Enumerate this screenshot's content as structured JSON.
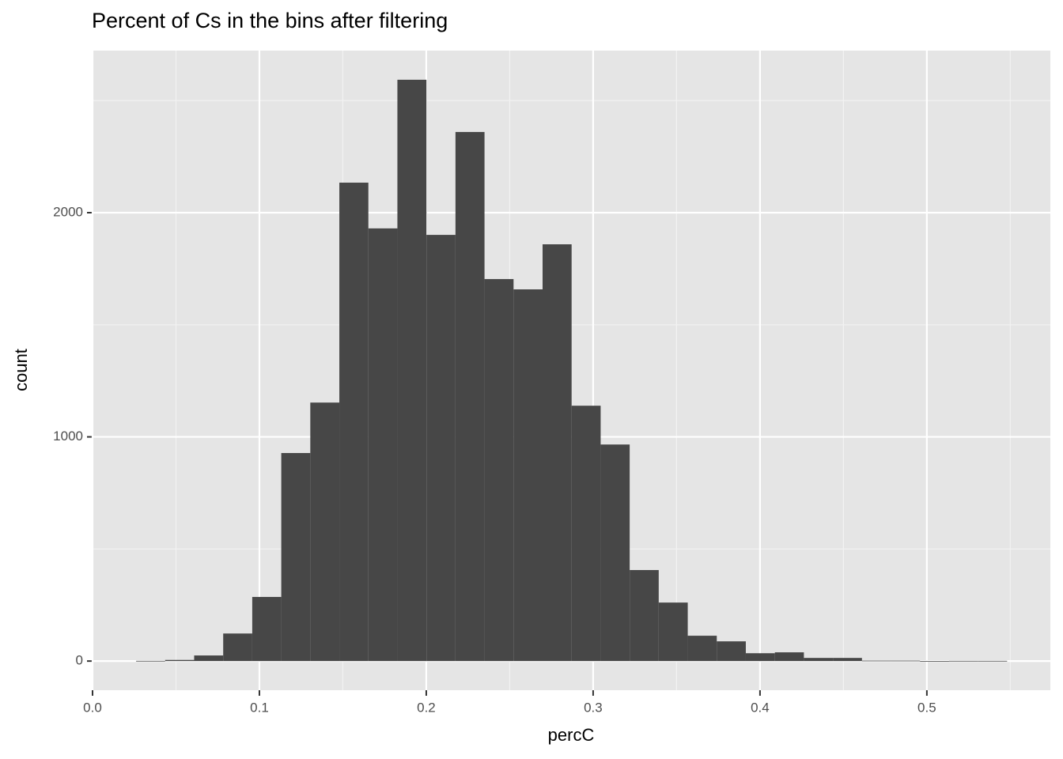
{
  "chart_data": {
    "type": "histogram",
    "title": "Percent of Cs in the bins after filtering",
    "x_label": "percC",
    "y_label": "count",
    "bins": [
      0.0261,
      0.0435,
      0.0609,
      0.0783,
      0.0957,
      0.1131,
      0.1305,
      0.1479,
      0.1653,
      0.1827,
      0.2001,
      0.2175,
      0.2349,
      0.2523,
      0.2697,
      0.2871,
      0.3045,
      0.3219,
      0.3393,
      0.3567,
      0.3741,
      0.3915,
      0.4089,
      0.4263,
      0.4437,
      0.4611,
      0.4785,
      0.4959,
      0.5133,
      0.5307,
      0.5481
    ],
    "values": [
      1,
      5,
      25,
      123,
      286,
      928,
      1153,
      2134,
      1930,
      2593,
      1901,
      2360,
      1704,
      1658,
      1859,
      1139,
      966,
      406,
      261,
      113,
      88,
      35,
      39,
      14,
      14,
      2,
      2,
      0,
      1,
      1
    ],
    "color": "#474747",
    "xlim": [
      0,
      0.574
    ],
    "xticks": [
      {
        "value": 0,
        "label": "0.0"
      },
      0.1,
      0.2,
      0.3,
      0.4,
      0.5
    ],
    "ylim": [
      -130,
      2723
    ],
    "yticks": [
      0,
      1000,
      2000
    ],
    "grid": true
  }
}
